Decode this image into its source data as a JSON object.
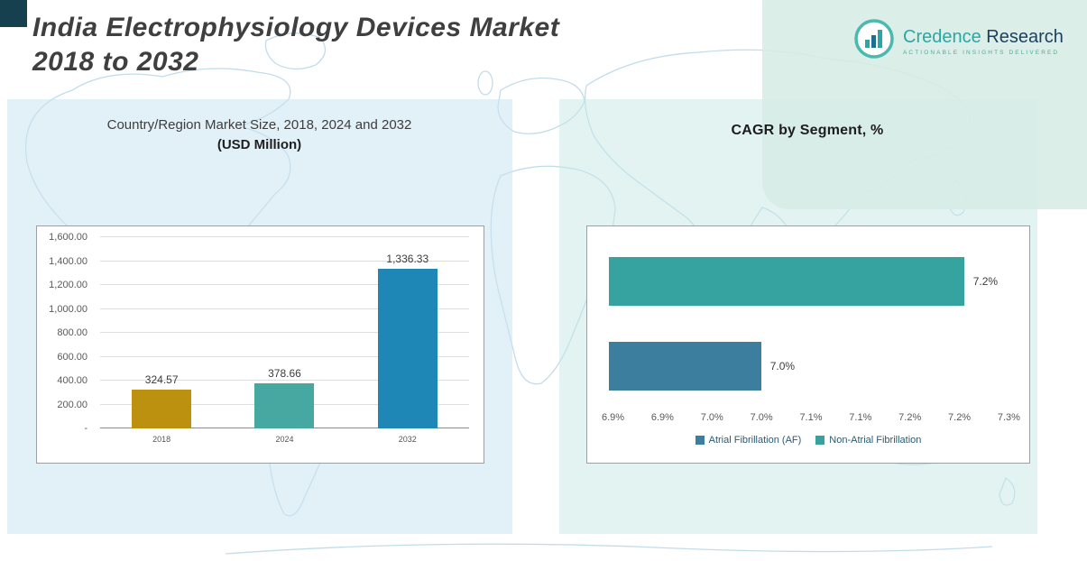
{
  "page": {
    "title_line1": "India Electrophysiology Devices Market",
    "title_line2": "2018 to 2032"
  },
  "logo": {
    "brand_primary": "Credence",
    "brand_secondary": "Research",
    "tagline": "Actionable Insights Delivered",
    "accent_color": "#2ba7a3",
    "secondary_color": "#1d3e5e"
  },
  "left_chart_heading": {
    "title": "Country/Region Market Size, 2018, 2024 and 2032",
    "subtitle": "(USD Million)"
  },
  "right_chart_heading": {
    "title": "CAGR by Segment, %"
  },
  "chart_data": [
    {
      "type": "bar",
      "title": "Country/Region Market Size, 2018, 2024 and 2032 (USD Million)",
      "categories": [
        "2018",
        "2024",
        "2032"
      ],
      "values": [
        324.57,
        378.66,
        1336.33
      ],
      "value_labels": [
        "324.57",
        "378.66",
        "1,336.33"
      ],
      "bar_colors": [
        "#bd9110",
        "#47a8a2",
        "#1f87b6"
      ],
      "ylim": [
        0,
        1600
      ],
      "ytick_values": [
        1600,
        1400,
        1200,
        1000,
        800,
        600,
        400,
        200,
        0
      ],
      "ytick_labels": [
        "1,600.00",
        "1,400.00",
        "1,200.00",
        "1,000.00",
        "800.00",
        "600.00",
        "400.00",
        "200.00",
        "-"
      ],
      "grid": true,
      "xlabel": "",
      "ylabel": ""
    },
    {
      "type": "bar",
      "orientation": "horizontal",
      "title": "CAGR by Segment, %",
      "series": [
        {
          "name": "Non-Atrial Fibrillation",
          "value": 7.2,
          "label": "7.2%",
          "color": "#36a3a0"
        },
        {
          "name": "Atrial Fibrillation (AF)",
          "value": 7.0,
          "label": "7.0%",
          "color": "#3c7e9e"
        }
      ],
      "xlim": [
        6.85,
        7.25
      ],
      "xtick_labels": [
        "6.9%",
        "6.9%",
        "7.0%",
        "7.0%",
        "7.1%",
        "7.1%",
        "7.2%",
        "7.2%",
        "7.3%"
      ],
      "legend": [
        {
          "label": "Atrial Fibrillation (AF)",
          "color": "#3c7e9e"
        },
        {
          "label": "Non-Atrial Fibrillation",
          "color": "#36a3a0"
        }
      ],
      "legend_position": "bottom",
      "grid": false
    }
  ]
}
